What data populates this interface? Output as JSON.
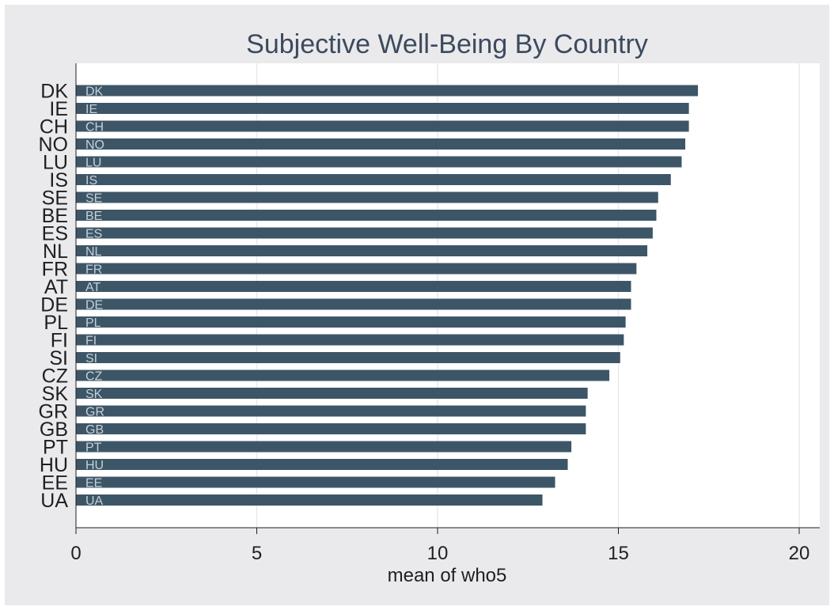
{
  "chart_data": {
    "type": "bar",
    "orientation": "horizontal",
    "title": "Subjective Well-Being By Country",
    "xlabel": "mean of who5",
    "ylabel": "",
    "xlim": [
      0,
      21
    ],
    "xticks": [
      0,
      5,
      10,
      15,
      20
    ],
    "grid": true,
    "legend": "none",
    "categories": [
      "DK",
      "IE",
      "CH",
      "NO",
      "LU",
      "IS",
      "SE",
      "BE",
      "ES",
      "NL",
      "FR",
      "AT",
      "DE",
      "PL",
      "FI",
      "SI",
      "CZ",
      "SK",
      "GR",
      "GB",
      "PT",
      "HU",
      "EE",
      "UA"
    ],
    "values": [
      17.2,
      16.95,
      16.95,
      16.85,
      16.75,
      16.45,
      16.1,
      16.05,
      15.95,
      15.8,
      15.5,
      15.35,
      15.35,
      15.2,
      15.15,
      15.05,
      14.75,
      14.15,
      14.1,
      14.1,
      13.7,
      13.6,
      13.25,
      12.9
    ],
    "colors": {
      "bar": "#3d5667",
      "bar_label": "#c6d0d8",
      "plot_background": "#ffffff",
      "outer_background": "#eaeaec",
      "title": "#3c4a5e",
      "grid": "#e9e9ec"
    }
  }
}
